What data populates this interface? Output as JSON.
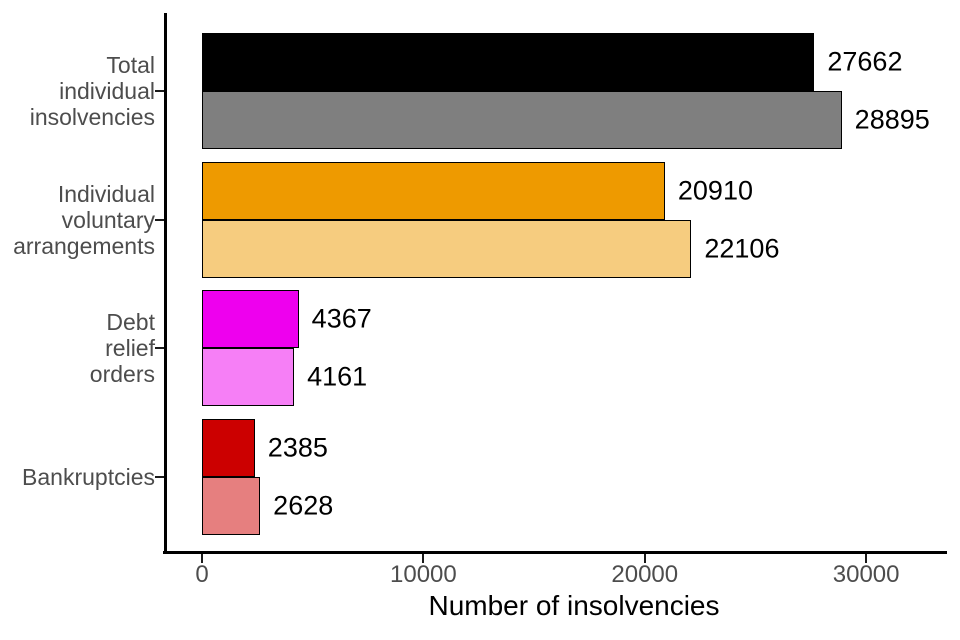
{
  "chart_data": {
    "type": "bar",
    "orientation": "horizontal",
    "title": "",
    "xlabel": "Number of insolvencies",
    "ylabel": "",
    "xlim": [
      0,
      33600
    ],
    "x_ticks": [
      0,
      10000,
      20000,
      30000
    ],
    "grid": false,
    "legend": false,
    "value_labels": true,
    "categories": [
      "Total individual insolvencies",
      "Individual voluntary arrangements",
      "Debt relief orders",
      "Bankruptcies"
    ],
    "category_label_lines": [
      "Total\nindividual\ninsolvencies",
      "Individual\nvoluntary\narrangements",
      "Debt\nrelief\norders",
      "Bankruptcies"
    ],
    "series": [
      {
        "name": "series-1",
        "values": [
          27662,
          20910,
          4367,
          2385
        ],
        "colors": [
          "#000000",
          "#EE9A00",
          "#EE00EE",
          "#CC0000"
        ]
      },
      {
        "name": "series-2",
        "values": [
          28895,
          22106,
          4161,
          2628
        ],
        "colors": [
          "#7F7F7F",
          "#F6CC7F",
          "#F67FF6",
          "#E67F7F"
        ]
      }
    ],
    "styles": {
      "background": "#FFFFFF",
      "axis_color": "#000000",
      "tick_label_color": "#4D4D4D",
      "category_label_color": "#4D4D4D",
      "value_label_color": "#000000",
      "bar_border_color": "#000000"
    }
  }
}
